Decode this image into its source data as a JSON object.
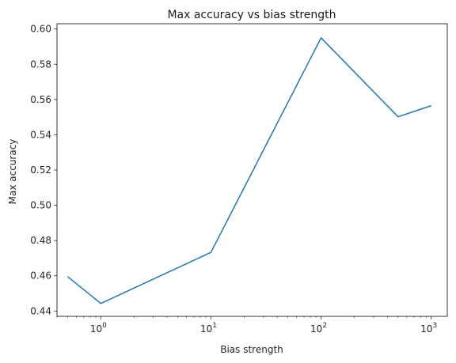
{
  "chart_data": {
    "type": "line",
    "title": "Max accuracy vs bias strength",
    "xlabel": "Bias strength",
    "ylabel": "Max accuracy",
    "xscale": "log",
    "xlim": [
      0.4,
      1400
    ],
    "ylim": [
      0.437,
      0.603
    ],
    "grid": false,
    "x_ticks": [
      {
        "value": 1,
        "base": "10",
        "exp": "0"
      },
      {
        "value": 10,
        "base": "10",
        "exp": "1"
      },
      {
        "value": 100,
        "base": "10",
        "exp": "2"
      },
      {
        "value": 1000,
        "base": "10",
        "exp": "3"
      }
    ],
    "y_ticks": [
      "0.44",
      "0.46",
      "0.48",
      "0.50",
      "0.52",
      "0.54",
      "0.56",
      "0.58",
      "0.60"
    ],
    "series": [
      {
        "color": "#1f77b4",
        "x": [
          0.5,
          1,
          10,
          100,
          500,
          1000
        ],
        "y": [
          0.4595,
          0.4443,
          0.4733,
          0.595,
          0.5502,
          0.5565
        ]
      }
    ]
  }
}
